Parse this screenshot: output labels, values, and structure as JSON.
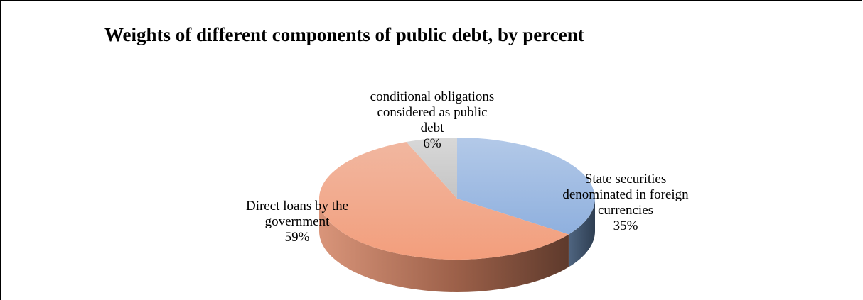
{
  "chart_data": {
    "type": "pie",
    "title": "Weights of different components of public debt, by percent",
    "slices": [
      {
        "label_lines": [
          "State securities",
          "denominated in foreign",
          "currencies"
        ],
        "value": 35,
        "value_label": "35%",
        "color": "#a8c1e3"
      },
      {
        "label_lines": [
          "Direct loans by the",
          "government"
        ],
        "value": 59,
        "value_label": "59%",
        "color": "#f3a687"
      },
      {
        "label_lines": [
          "conditional obligations",
          "considered as public",
          "debt"
        ],
        "value": 6,
        "value_label": "6%",
        "color": "#cfcfcf"
      }
    ],
    "style": "3d",
    "legend": "none"
  }
}
